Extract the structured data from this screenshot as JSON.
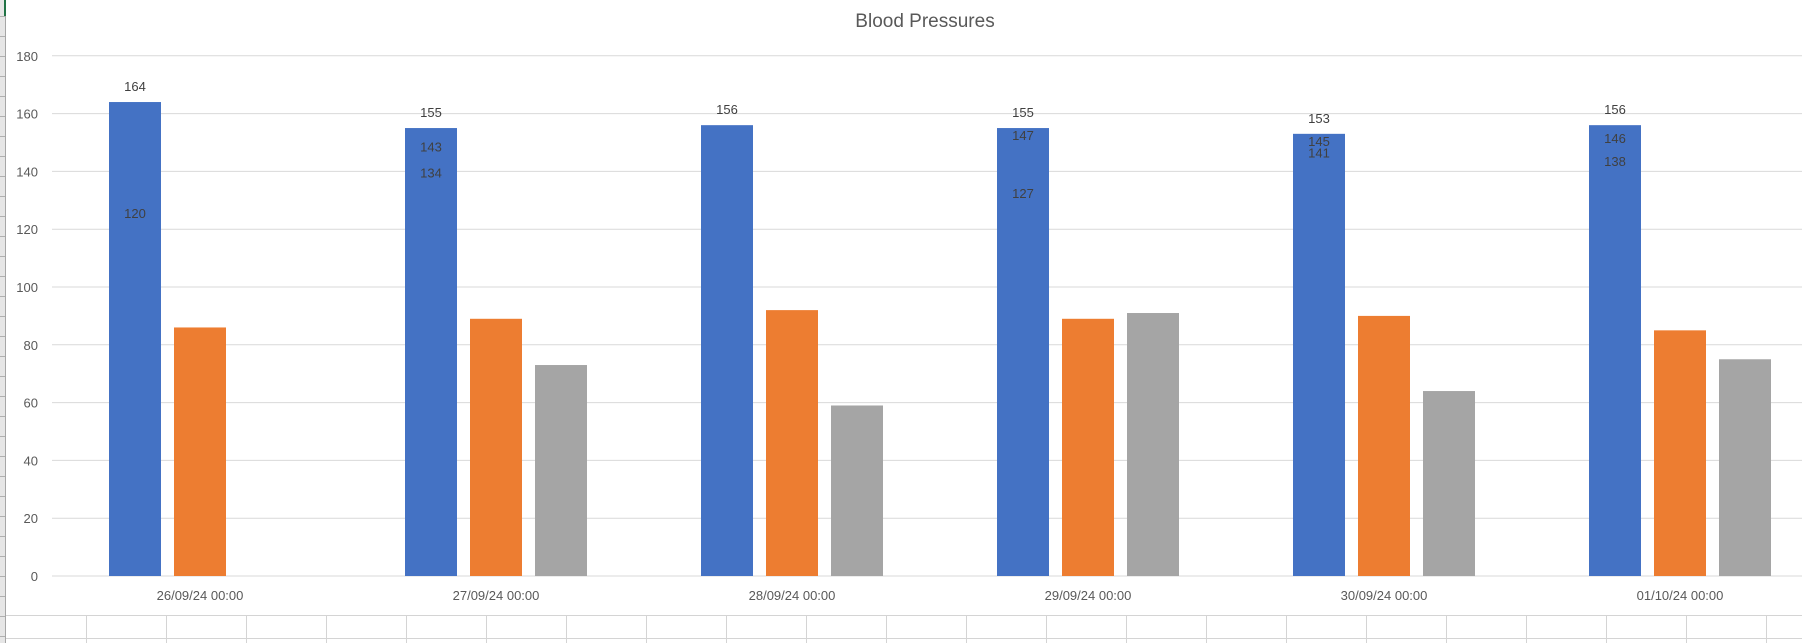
{
  "chart_data": {
    "type": "bar",
    "title": "Blood Pressures",
    "xlabel": "",
    "ylabel": "",
    "ylim": [
      0,
      180
    ],
    "ytick_step": 20,
    "yticks": [
      "0",
      "20",
      "40",
      "60",
      "80",
      "100",
      "120",
      "140",
      "160",
      "180"
    ],
    "grid": true,
    "legend": "none",
    "categories": [
      "26/09/24 00:00",
      "27/09/24 00:00",
      "28/09/24 00:00",
      "29/09/24 00:00",
      "30/09/24 00:00",
      "01/10/24 00:00"
    ],
    "series": [
      {
        "name": "Series 1",
        "color": "#4472c4",
        "values": [
          164,
          155,
          156,
          155,
          153,
          156
        ],
        "show_labels": true
      },
      {
        "name": "Series 2",
        "color": "#ed7d31",
        "values": [
          86,
          89,
          92,
          89,
          90,
          85
        ],
        "show_labels": false
      },
      {
        "name": "Series 3",
        "color": "#a5a5a5",
        "values": [
          null,
          73,
          59,
          91,
          64,
          75
        ],
        "show_labels": false
      }
    ],
    "extra_labels": [
      [
        "120"
      ],
      [
        "143",
        "134"
      ],
      [],
      [
        "147",
        "127"
      ],
      [
        "145",
        "141"
      ],
      [
        "146",
        "138"
      ]
    ],
    "extra_label_values": [
      [
        120
      ],
      [
        143,
        134
      ],
      [],
      [
        147,
        127
      ],
      [
        145,
        141
      ],
      [
        146,
        138
      ]
    ]
  },
  "colors": {
    "gridline": "#d9d9d9",
    "axis_text": "#595959",
    "label_text": "#404040",
    "title_text": "#595959"
  }
}
